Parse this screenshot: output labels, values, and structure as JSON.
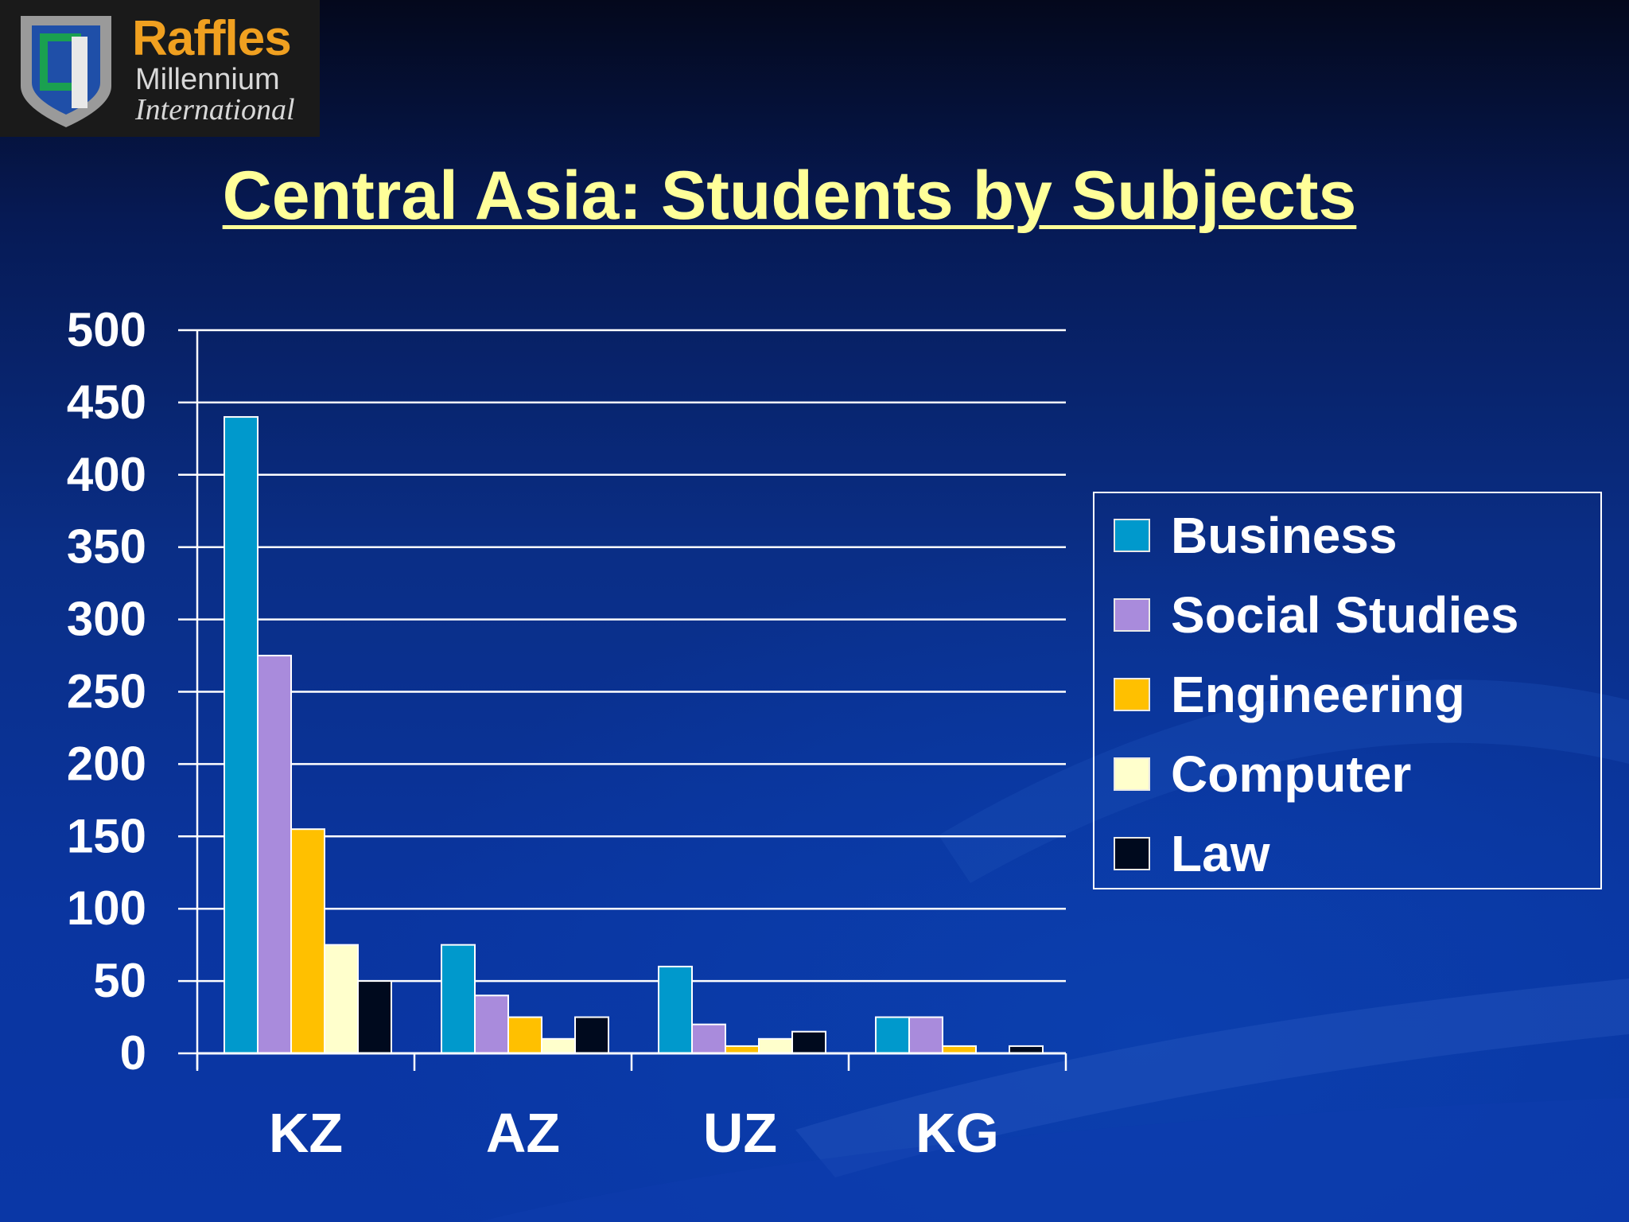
{
  "logo": {
    "name": "Raffles",
    "line2": "Millennium",
    "line3": "International"
  },
  "colors": {
    "title": "#ffff99",
    "axis": "#ffffff",
    "logo_accent": "#f0a020"
  },
  "chart_data": {
    "type": "bar",
    "title": "Central Asia: Students by Subjects",
    "xlabel": "",
    "ylabel": "",
    "categories": [
      "KZ",
      "AZ",
      "UZ",
      "KG"
    ],
    "ylim": [
      0,
      500
    ],
    "yticks": [
      0,
      50,
      100,
      150,
      200,
      250,
      300,
      350,
      400,
      450,
      500
    ],
    "grid": true,
    "legend_position": "right",
    "series": [
      {
        "name": "Business",
        "color": "#0099cc",
        "values": [
          440,
          75,
          60,
          25
        ]
      },
      {
        "name": "Social Studies",
        "color": "#a98bdc",
        "values": [
          275,
          40,
          20,
          25
        ]
      },
      {
        "name": "Engineering",
        "color": "#ffc000",
        "values": [
          155,
          25,
          5,
          5
        ]
      },
      {
        "name": "Computer",
        "color": "#ffffcc",
        "values": [
          75,
          10,
          10,
          0
        ]
      },
      {
        "name": "Law",
        "color": "#000a1e",
        "values": [
          50,
          25,
          15,
          5
        ]
      }
    ]
  }
}
